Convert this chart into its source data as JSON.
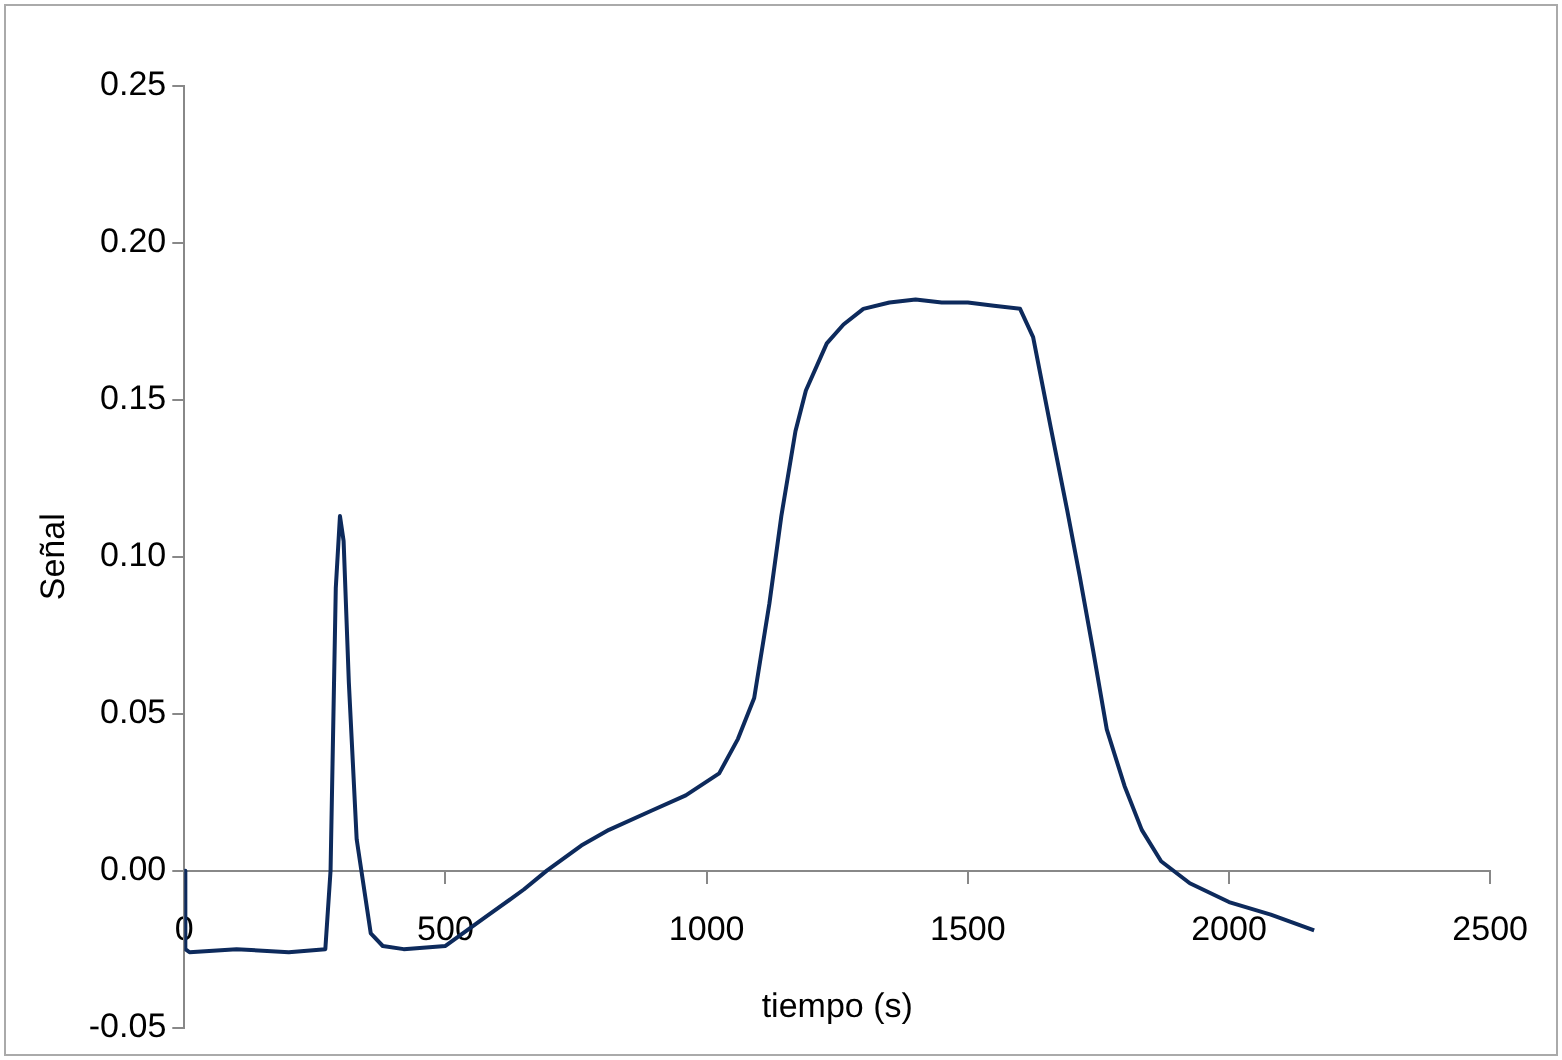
{
  "chart_data": {
    "type": "line",
    "xlabel": "tiempo (s)",
    "ylabel": "Señal",
    "x": [
      0,
      2,
      10,
      100,
      200,
      270,
      280,
      290,
      298,
      305,
      315,
      330,
      357,
      380,
      420,
      500,
      575,
      650,
      694,
      760,
      813,
      893,
      960,
      1024,
      1060,
      1091,
      1120,
      1143,
      1170,
      1190,
      1230,
      1262,
      1300,
      1350,
      1400,
      1450,
      1500,
      1550,
      1600,
      1625,
      1659,
      1690,
      1714,
      1740,
      1766,
      1800,
      1833,
      1870,
      1925,
      2000,
      2080,
      2163
    ],
    "series": [
      {
        "color": "#0d2a5c",
        "values": [
          0.0,
          -0.025,
          -0.026,
          -0.025,
          -0.026,
          -0.025,
          0.0,
          0.09,
          0.113,
          0.105,
          0.06,
          0.01,
          -0.02,
          -0.024,
          -0.025,
          -0.024,
          -0.015,
          -0.006,
          0.0,
          0.008,
          0.013,
          0.019,
          0.024,
          0.031,
          0.042,
          0.055,
          0.085,
          0.113,
          0.14,
          0.153,
          0.168,
          0.174,
          0.179,
          0.181,
          0.182,
          0.181,
          0.181,
          0.18,
          0.179,
          0.17,
          0.141,
          0.115,
          0.094,
          0.07,
          0.045,
          0.027,
          0.013,
          0.003,
          -0.004,
          -0.01,
          -0.014,
          -0.019
        ]
      }
    ],
    "xlim": [
      0,
      2500
    ],
    "xticks": [
      0,
      500,
      1000,
      1500,
      2000,
      2500
    ],
    "ylim": [
      -0.05,
      0.25
    ],
    "yticks": [
      {
        "value": -0.05,
        "label": "-0.05"
      },
      {
        "value": 0,
        "label": "0.00"
      },
      {
        "value": 0.05,
        "label": "0.05"
      },
      {
        "value": 0.1,
        "label": "0.10"
      },
      {
        "value": 0.15,
        "label": "0.15"
      },
      {
        "value": 0.2,
        "label": "0.20"
      },
      {
        "value": 0.25,
        "label": "0.25"
      }
    ],
    "grid": false,
    "legend": false,
    "marker": "none",
    "line_style": "solid"
  }
}
